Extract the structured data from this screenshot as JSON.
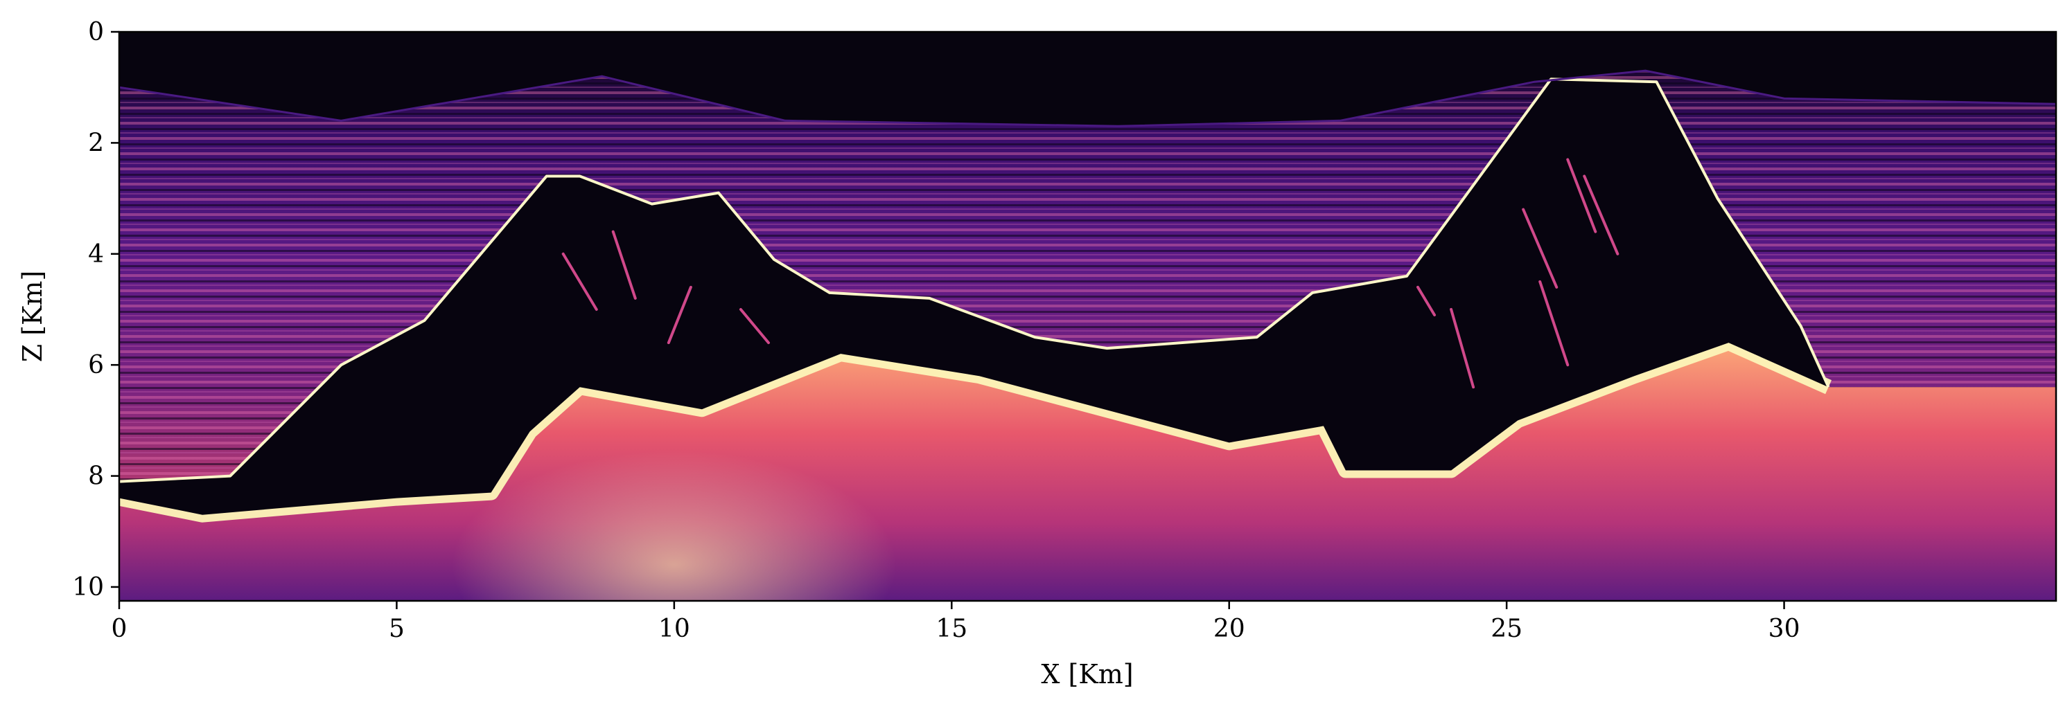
{
  "chart_data": {
    "type": "heatmap",
    "title": "",
    "xlabel": "X [Km]",
    "ylabel": "Z [Km]",
    "xlim": [
      0,
      34.9
    ],
    "ylim": [
      10.25,
      0
    ],
    "y_inverted": true,
    "x_ticks": [
      0,
      5,
      10,
      15,
      20,
      25,
      30
    ],
    "x_tick_labels": [
      "0",
      "5",
      "10",
      "15",
      "20",
      "25",
      "30"
    ],
    "y_ticks": [
      0,
      2,
      4,
      6,
      8,
      10
    ],
    "y_tick_labels": [
      "0",
      "2",
      "4",
      "6",
      "8",
      "10"
    ],
    "colormap": "magma",
    "colormap_stops": [
      "#05030f",
      "#2a0a5e",
      "#6b1f7c",
      "#b63679",
      "#e9556b",
      "#fb9a72",
      "#fde0a6",
      "#fcfdbf"
    ],
    "grid": false,
    "seabed": [
      [
        0,
        1.0
      ],
      [
        4,
        1.6
      ],
      [
        8.7,
        0.8
      ],
      [
        12,
        1.6
      ],
      [
        18,
        1.7
      ],
      [
        22,
        1.6
      ],
      [
        25.5,
        0.9
      ],
      [
        27.5,
        0.7
      ],
      [
        30,
        1.2
      ],
      [
        34.9,
        1.3
      ]
    ],
    "salt_body_top": [
      [
        0,
        8.1
      ],
      [
        2,
        8.0
      ],
      [
        4,
        6.0
      ],
      [
        5.5,
        5.2
      ],
      [
        7.7,
        2.6
      ],
      [
        8.3,
        2.6
      ],
      [
        9.6,
        3.1
      ],
      [
        10.8,
        2.9
      ],
      [
        11.8,
        4.1
      ],
      [
        12.8,
        4.7
      ],
      [
        14.6,
        4.8
      ],
      [
        16.5,
        5.5
      ],
      [
        17.8,
        5.7
      ],
      [
        20.5,
        5.5
      ],
      [
        21.5,
        4.7
      ],
      [
        23.2,
        4.4
      ],
      [
        25.8,
        0.85
      ],
      [
        27.7,
        0.9
      ],
      [
        28.8,
        3.0
      ],
      [
        30.3,
        5.3
      ],
      [
        30.8,
        6.4
      ]
    ],
    "salt_body_base": [
      [
        30.8,
        6.4
      ],
      [
        29,
        5.6
      ],
      [
        27.3,
        6.2
      ],
      [
        25.2,
        7.0
      ],
      [
        24,
        7.9
      ],
      [
        22.1,
        7.9
      ],
      [
        21.7,
        7.1
      ],
      [
        20,
        7.4
      ],
      [
        15.5,
        6.2
      ],
      [
        13,
        5.8
      ],
      [
        10.5,
        6.8
      ],
      [
        8.3,
        6.4
      ],
      [
        7.4,
        7.2
      ],
      [
        6.7,
        8.3
      ],
      [
        5,
        8.4
      ],
      [
        1.5,
        8.7
      ],
      [
        0,
        8.4
      ]
    ]
  }
}
